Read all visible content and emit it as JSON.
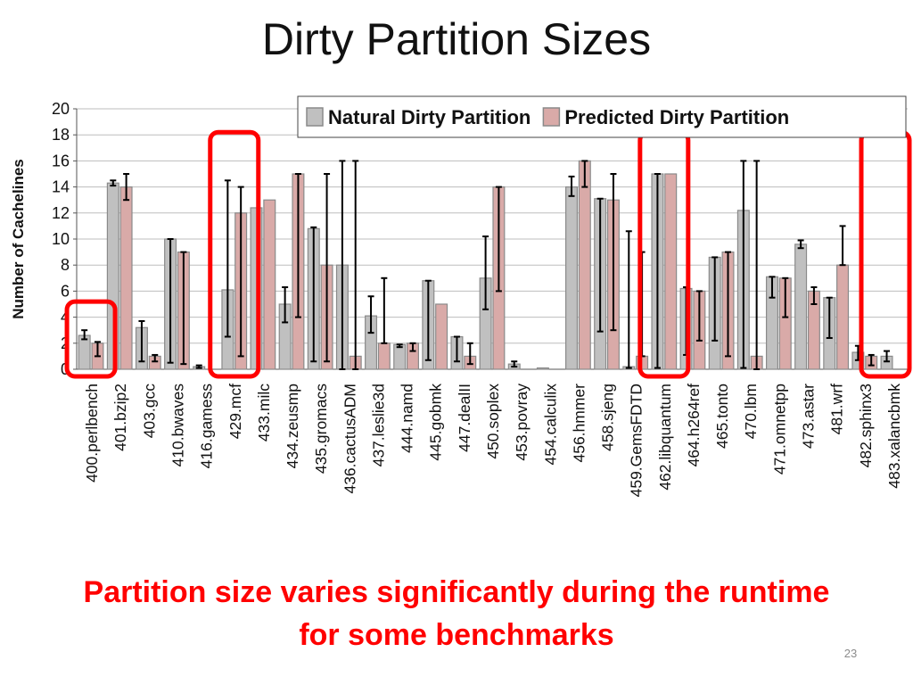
{
  "slide": {
    "title": "Dirty Partition Sizes",
    "caption_line1": "Partition size varies significantly during the runtime",
    "caption_line2": "for some benchmarks",
    "page_number": "23",
    "caption_color": "#ff0000",
    "highlight_color": "#ff0000",
    "highlighted_benchmarks": [
      "400.perlbench",
      "429.mcf",
      "462.libquantum",
      "483.xalancbmk"
    ]
  },
  "chart_data": {
    "type": "bar",
    "title": "",
    "xlabel": "",
    "ylabel": "Number of Cachelines",
    "ylim": [
      0,
      20
    ],
    "yticks": [
      0,
      2,
      4,
      6,
      8,
      10,
      12,
      14,
      16,
      18,
      20
    ],
    "grid": true,
    "legend_position": "top-right",
    "error_bars": true,
    "categories": [
      "400.perlbench",
      "401.bzip2",
      "403.gcc",
      "410.bwaves",
      "416.gamess",
      "429.mcf",
      "433.milc",
      "434.zeusmp",
      "435.gromacs",
      "436.cactusADM",
      "437.leslie3d",
      "444.namd",
      "445.gobmk",
      "447.dealII",
      "450.soplex",
      "453.povray",
      "454.calculix",
      "456.hmmer",
      "458.sjeng",
      "459.GemsFDTD",
      "462.libquantum",
      "464.h264ref",
      "465.tonto",
      "470.lbm",
      "471.omnetpp",
      "473.astar",
      "481.wrf",
      "482.sphinx3",
      "483.xalancbmk"
    ],
    "series": [
      {
        "name": "Natural Dirty Partition",
        "color": "#c0c0c0",
        "values": [
          2.6,
          14.3,
          3.2,
          10,
          0.2,
          6.1,
          12.4,
          5,
          10.8,
          8,
          4.1,
          1.9,
          6.8,
          2.5,
          7,
          0.4,
          0.1,
          14,
          13.1,
          0.2,
          15,
          6.2,
          8.6,
          12.2,
          7.1,
          9.6,
          5.5,
          1.3,
          1
        ],
        "err_low": [
          2.3,
          14.1,
          0.6,
          0.5,
          0.1,
          2.5,
          12.4,
          3.6,
          0.6,
          0,
          2.8,
          1.7,
          0.7,
          0.6,
          4.6,
          0.2,
          0.1,
          13.3,
          2.9,
          0.1,
          0.1,
          1.1,
          2.2,
          0.1,
          5.5,
          9.3,
          2.4,
          0.7,
          0.6
        ],
        "err_high": [
          3,
          14.5,
          3.7,
          10,
          0.3,
          14.5,
          12.4,
          6.3,
          10.9,
          16,
          5.6,
          1.9,
          6.8,
          2.5,
          10.2,
          0.6,
          0.1,
          14.8,
          13.1,
          10.6,
          15,
          6.3,
          8.6,
          16,
          7.1,
          9.9,
          5.5,
          1.8,
          1.4
        ]
      },
      {
        "name": "Predicted Dirty Partition",
        "color": "#d9aaa8",
        "values": [
          2,
          14,
          1,
          9,
          0,
          12,
          13,
          15,
          8,
          1,
          2,
          2,
          5,
          1,
          14,
          0,
          0,
          16,
          13,
          1,
          15,
          6,
          9,
          1,
          7,
          6,
          8,
          1,
          0
        ],
        "err_low": [
          1,
          13,
          0.6,
          0.4,
          0,
          1,
          13,
          4,
          0.6,
          0,
          2,
          1.4,
          5,
          0.4,
          6,
          0,
          0,
          14,
          3,
          1,
          15,
          2.2,
          1,
          0,
          4,
          5,
          8,
          0.3,
          0
        ],
        "err_high": [
          2.1,
          15,
          1.1,
          9,
          0,
          14,
          13,
          15,
          15,
          16,
          7,
          2,
          5,
          2,
          14,
          0,
          0,
          16,
          15,
          9,
          15,
          6,
          9,
          16,
          7,
          6.3,
          11,
          1.1,
          0
        ]
      }
    ]
  }
}
